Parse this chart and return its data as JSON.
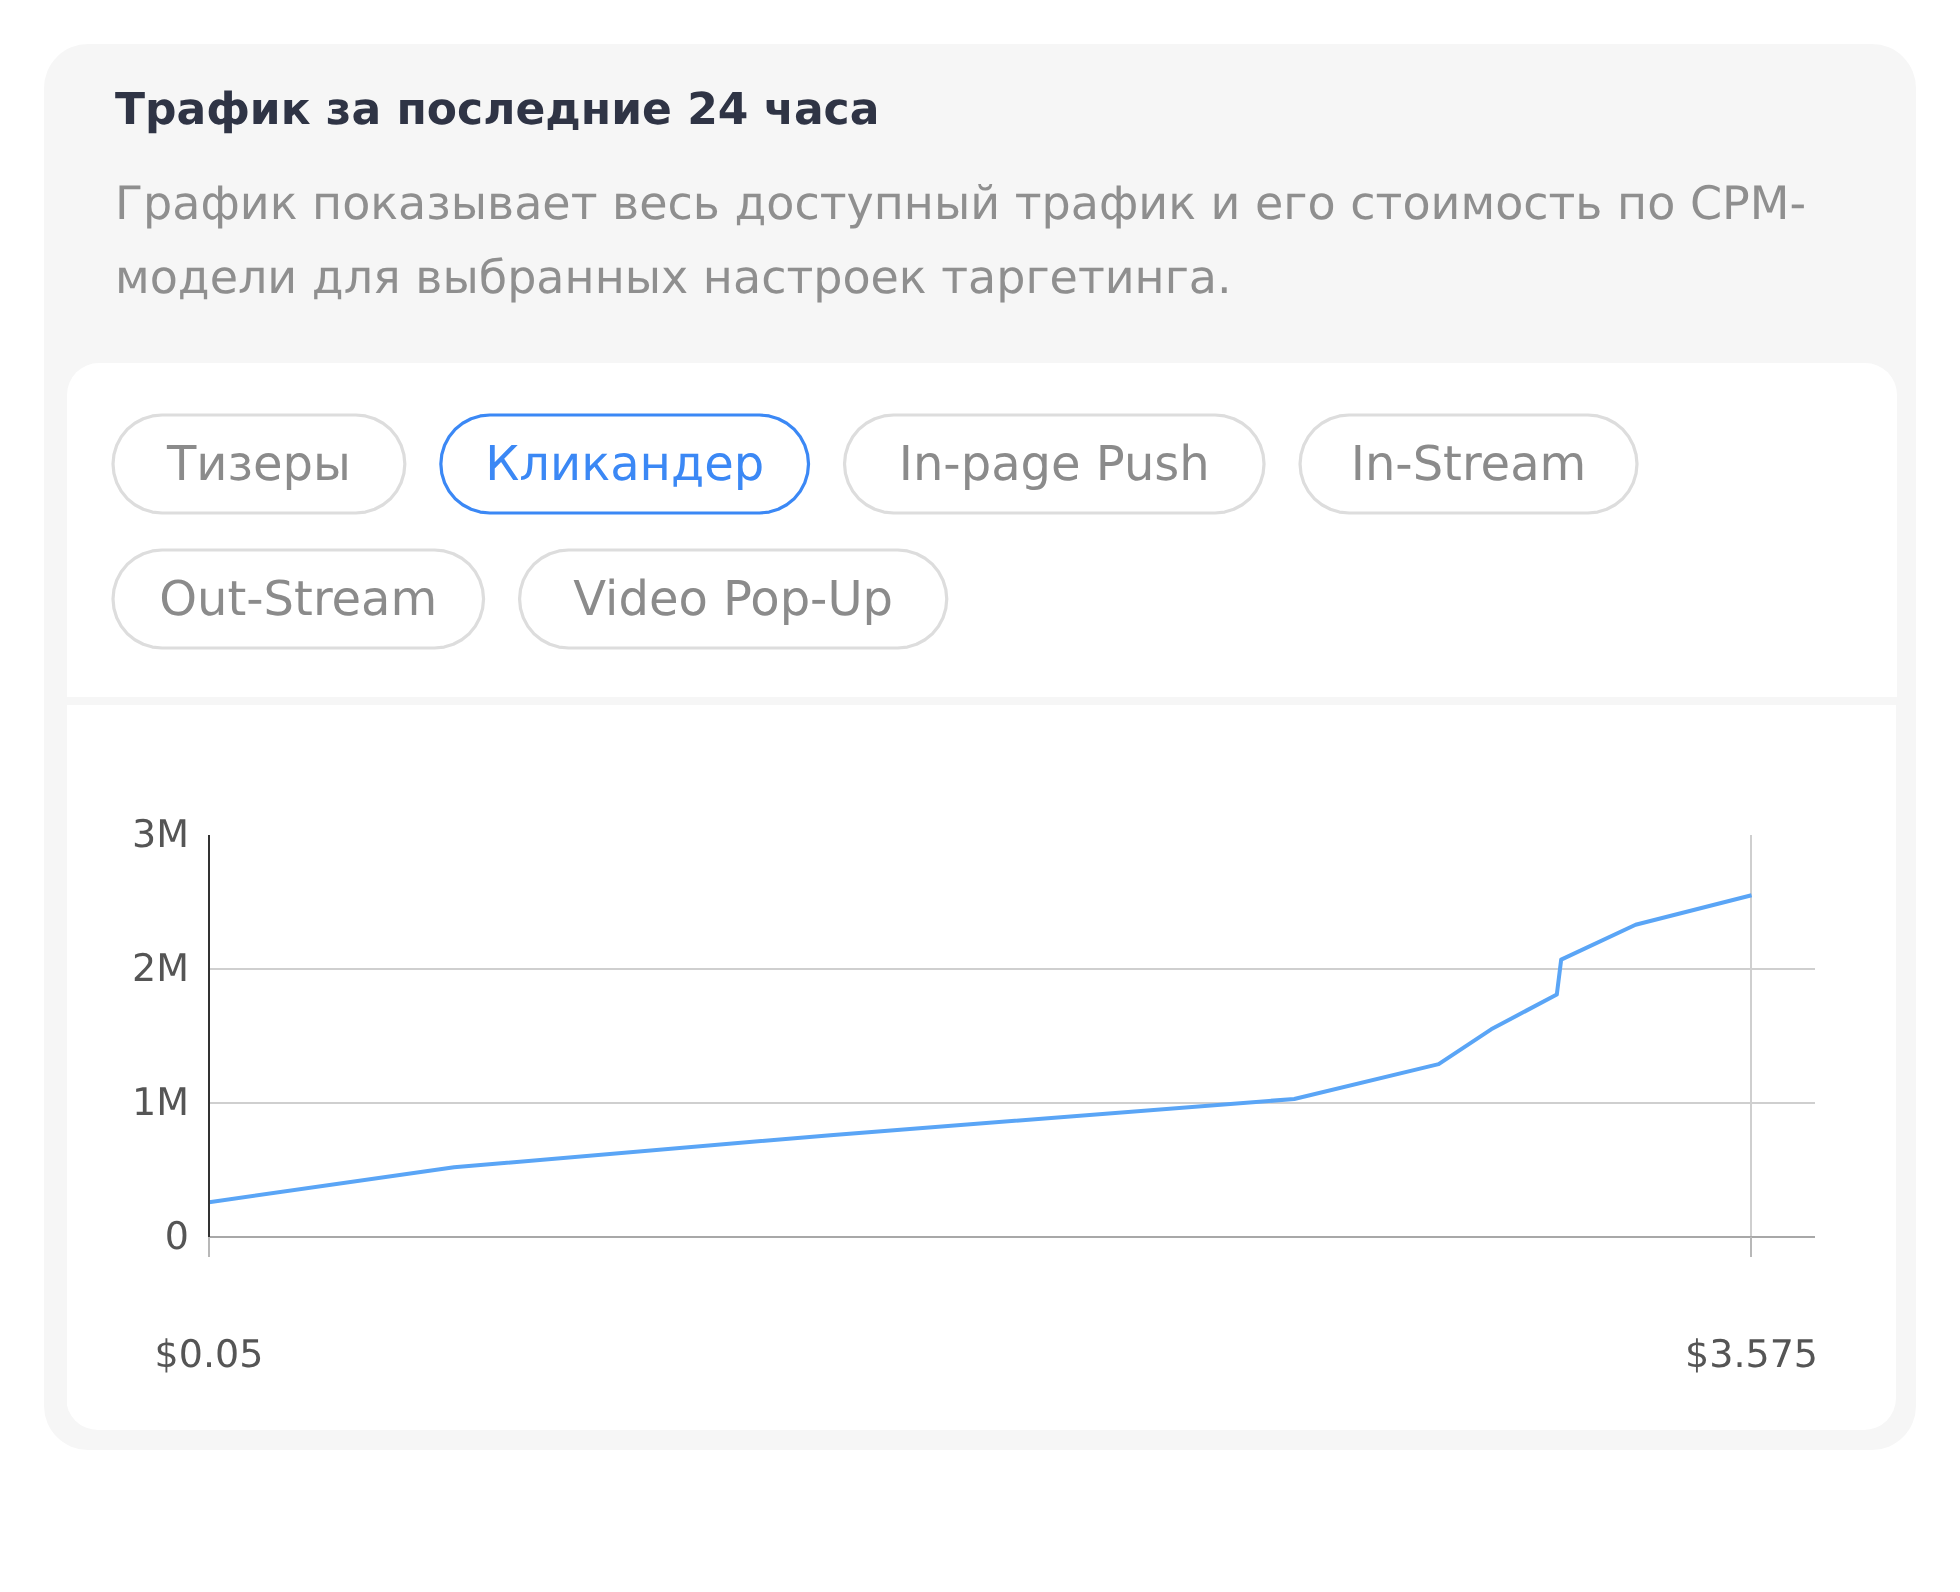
{
  "chart_data": [
    {
      "type": "other",
      "title": "Трафик за последние 24 часа",
      "subtitle": "График показывает весь доступный трафик и его стоимость по CPM-модели для выбранных настроек таргетинга.",
      "categories": [
        "Тизеры",
        "Кликандер",
        "In-page Push",
        "In-Stream",
        "Out-Stream",
        "Video Pop-Up"
      ],
      "colors": [
        "#dddddd",
        "#3b88f5",
        "#dddddd",
        "#dddddd",
        "#dddddd",
        "#dddddd"
      ]
    },
    {
      "type": "line",
      "x": [
        0.05,
        0.61,
        1.47,
        2.53,
        2.86,
        2.98,
        3.13,
        3.14,
        3.31,
        3.575
      ],
      "values": [
        260000,
        520000,
        760000,
        1030000,
        1290000,
        1550000,
        1810000,
        2070000,
        2330000,
        2550000
      ],
      "color": "#5aa5f6",
      "xlim": [
        0.05,
        3.72
      ],
      "xticks": [
        {
          "value": 0.05,
          "label": "$0.05"
        },
        {
          "value": 3.575,
          "label": "$3.575"
        }
      ],
      "ylim": [
        0,
        3000000
      ],
      "yticks": [
        0,
        {
          "value": 1000000,
          "label": "1M"
        },
        {
          "value": 2000000,
          "label": "2M"
        },
        {
          "value": 3000000,
          "label": "3M"
        }
      ],
      "grid": true
    }
  ]
}
